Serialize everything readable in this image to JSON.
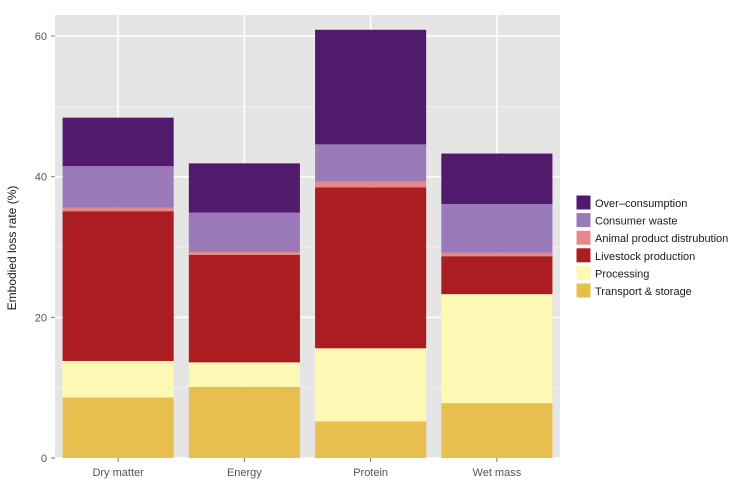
{
  "chart_data": {
    "type": "bar",
    "stacked": true,
    "title": "",
    "xlabel": "",
    "ylabel": "Embodied loss rate (%)",
    "ylim": [
      0,
      63
    ],
    "yticks": [
      0,
      20,
      40,
      60
    ],
    "grid": true,
    "legend_position": "right",
    "categories": [
      "Dry matter",
      "Energy",
      "Protein",
      "Wet mass"
    ],
    "series": [
      {
        "name": "Transport & storage",
        "color": "#e8bf4f",
        "values": [
          8.6,
          10.1,
          5.2,
          7.8
        ]
      },
      {
        "name": "Processing",
        "color": "#fdf8b4",
        "values": [
          5.2,
          3.5,
          10.4,
          15.5
        ]
      },
      {
        "name": "Livestock production",
        "color": "#ac1d22",
        "values": [
          21.3,
          15.3,
          22.9,
          5.4
        ]
      },
      {
        "name": "Animal product distrubution",
        "color": "#e4898a",
        "values": [
          0.5,
          0.4,
          0.8,
          0.5
        ]
      },
      {
        "name": "Consumer waste",
        "color": "#9b7ab9",
        "values": [
          5.9,
          5.6,
          5.3,
          6.9
        ]
      },
      {
        "name": "Over-consumption",
        "color": "#521a6d",
        "values": [
          6.9,
          7.0,
          16.3,
          7.2
        ]
      }
    ],
    "legend_order": [
      "Over–consumption",
      "Consumer waste",
      "Animal product distrubution",
      "Livestock production",
      "Processing",
      "Transport & storage"
    ]
  }
}
